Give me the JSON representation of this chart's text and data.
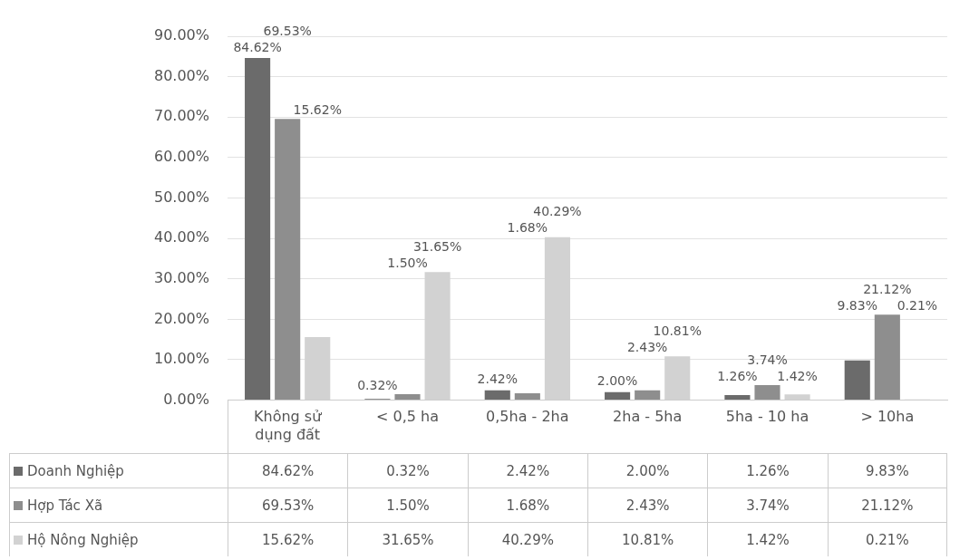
{
  "chart_data": {
    "type": "bar",
    "categories": [
      "Không sử dụng đất",
      "< 0,5 ha",
      "0,5ha - 2ha",
      "2ha - 5ha",
      "5ha - 10 ha",
      "> 10ha"
    ],
    "series": [
      {
        "name": "Doanh Nghiệp",
        "color": "#6b6b6b",
        "values": [
          84.62,
          0.32,
          2.42,
          2.0,
          1.26,
          9.83
        ],
        "value_labels": [
          "84.62%",
          "0.32%",
          "2.42%",
          "2.00%",
          "1.26%",
          "9.83%"
        ]
      },
      {
        "name": "Hợp Tác Xã",
        "color": "#8e8e8e",
        "values": [
          69.53,
          1.5,
          1.68,
          2.43,
          3.74,
          21.12
        ],
        "value_labels": [
          "69.53%",
          "1.50%",
          "1.68%",
          "2.43%",
          "3.74%",
          "21.12%"
        ]
      },
      {
        "name": "Hộ Nông Nghiệp",
        "color": "#d2d2d2",
        "values": [
          15.62,
          31.65,
          40.29,
          10.81,
          1.42,
          0.21
        ],
        "value_labels": [
          "15.62%",
          "31.65%",
          "40.29%",
          "10.81%",
          "1.42%",
          "0.21%"
        ]
      }
    ],
    "ylim": [
      0,
      90
    ],
    "yticks": [
      {
        "value": 0,
        "label": "0.00%"
      },
      {
        "value": 10,
        "label": "10.00%"
      },
      {
        "value": 20,
        "label": "20.00%"
      },
      {
        "value": 30,
        "label": "30.00%"
      },
      {
        "value": 40,
        "label": "40.00%"
      },
      {
        "value": 50,
        "label": "50.00%"
      },
      {
        "value": 60,
        "label": "60.00%"
      },
      {
        "value": 70,
        "label": "70.00%"
      },
      {
        "value": 80,
        "label": "80.00%"
      },
      {
        "value": 90,
        "label": "90.00%"
      }
    ],
    "grid": "y",
    "legend": "bottom"
  }
}
